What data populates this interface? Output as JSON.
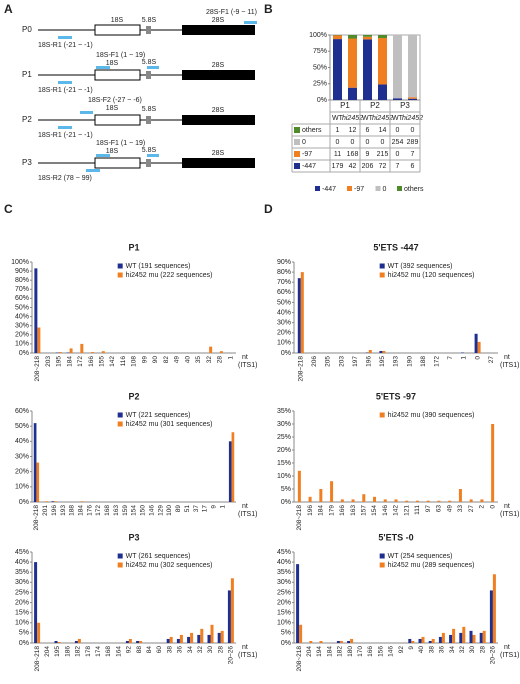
{
  "panels": [
    "A",
    "B",
    "C",
    "D"
  ],
  "diagram": {
    "rows": [
      {
        "label": "P0",
        "segments": [
          "18S",
          "5.8S",
          "28S"
        ],
        "primers": [
          "28S-F1 (-9 ~ 11)",
          "18S-R1 (-21 ~ -1)"
        ]
      },
      {
        "label": "P1",
        "segments": [
          "18S",
          "5.8S",
          "28S"
        ],
        "primers": [
          "18S-F1 (1 ~ 19)",
          "18S-R1 (-21 ~ -1)"
        ]
      },
      {
        "label": "P2",
        "segments": [
          "18S",
          "5.8S",
          "28S"
        ],
        "primers": [
          "18S-F2 (-27 ~ -6)",
          "18S-R1 (-21 ~ -1)"
        ]
      },
      {
        "label": "P3",
        "segments": [
          "18S",
          "5.8S",
          "28S"
        ],
        "primers": [
          "18S-F1 (1 ~ 19)",
          "18S-R2 (78 ~ 99)"
        ]
      }
    ]
  },
  "chart_data": [
    {
      "type": "stacked_percent",
      "groups": [
        "P1",
        "P2",
        "P3"
      ],
      "categories": [
        "WT",
        "hi2452",
        "WT",
        "hi2452",
        "WT",
        "hi2452"
      ],
      "ylim": [
        0,
        100
      ],
      "yticks": [
        {
          "value": 0,
          "label": "0%"
        },
        {
          "value": 25,
          "label": "25%"
        },
        {
          "value": 50,
          "label": "50%"
        },
        {
          "value": 75,
          "label": "75%"
        },
        {
          "value": 100,
          "label": "100%"
        }
      ],
      "series": [
        {
          "name": "-447",
          "color": "#1f2f8f",
          "values": [
            179,
            42,
            206,
            72,
            7,
            6
          ]
        },
        {
          "name": "-97",
          "color": "#f07f22",
          "values": [
            11,
            168,
            9,
            215,
            0,
            7
          ]
        },
        {
          "name": "0",
          "color": "#bfbfbf",
          "values": [
            0,
            0,
            0,
            0,
            254,
            289
          ]
        },
        {
          "name": "others",
          "color": "#4f8a2b",
          "values": [
            1,
            12,
            6,
            14,
            0,
            0
          ]
        }
      ]
    },
    {
      "type": "bar",
      "title": "P1",
      "xlabel": "nt",
      "xlabel2": "(ITS1)",
      "categories": [
        "208~218",
        "203",
        "195",
        "184",
        "172",
        "166",
        "155",
        "142",
        "116",
        "108",
        "99",
        "90",
        "82",
        "49",
        "40",
        "35",
        "32",
        "28",
        "1"
      ],
      "ylim": [
        0,
        100
      ],
      "yticks": [
        {
          "value": 0,
          "label": "0%"
        },
        {
          "value": 10,
          "label": "10%"
        },
        {
          "value": 20,
          "label": "20%"
        },
        {
          "value": 30,
          "label": "30%"
        },
        {
          "value": 40,
          "label": "40%"
        },
        {
          "value": 50,
          "label": "50%"
        },
        {
          "value": 60,
          "label": "60%"
        },
        {
          "value": 70,
          "label": "70%"
        },
        {
          "value": 80,
          "label": "80%"
        },
        {
          "value": 90,
          "label": "90%"
        },
        {
          "value": 100,
          "label": "100%"
        }
      ],
      "series": [
        {
          "name": "WT (191 sequences)",
          "color": "#1f2f8f",
          "values": [
            93,
            0,
            0.5,
            0.5,
            0,
            0,
            0,
            0,
            0,
            0,
            0,
            0,
            0,
            0,
            0,
            0,
            0,
            0,
            0
          ]
        },
        {
          "name": "hi2452 mu (222 sequences)",
          "color": "#f07f22",
          "values": [
            28,
            0,
            1,
            5,
            10,
            1,
            2,
            0,
            0,
            0,
            0,
            0,
            0,
            0,
            0,
            0,
            7,
            2,
            0
          ]
        }
      ]
    },
    {
      "type": "bar",
      "title": "P2",
      "xlabel": "nt",
      "xlabel2": "(ITS1)",
      "categories": [
        "208~218",
        "201",
        "196",
        "193",
        "188",
        "184",
        "176",
        "172",
        "168",
        "163",
        "159",
        "154",
        "150",
        "146",
        "129",
        "100",
        "89",
        "51",
        "37",
        "17",
        "9",
        "1",
        null
      ],
      "ylim": [
        0,
        60
      ],
      "yticks": [
        {
          "value": 0,
          "label": "0%"
        },
        {
          "value": 10,
          "label": "10%"
        },
        {
          "value": 20,
          "label": "20%"
        },
        {
          "value": 30,
          "label": "30%"
        },
        {
          "value": 40,
          "label": "40%"
        },
        {
          "value": 50,
          "label": "50%"
        },
        {
          "value": 60,
          "label": "60%"
        }
      ],
      "series": [
        {
          "name": "WT (221 sequences)",
          "color": "#1f2f8f",
          "values": [
            52,
            0,
            0.5,
            0,
            0,
            0,
            0,
            0,
            0,
            0,
            0,
            0,
            0,
            0,
            0,
            0,
            0,
            0,
            0,
            0,
            0,
            0,
            40
          ]
        },
        {
          "name": "hi2452 mu (301 sequences)",
          "color": "#f07f22",
          "values": [
            26,
            0.5,
            0.5,
            0,
            0,
            0.5,
            0,
            0,
            0,
            0,
            0,
            0,
            0,
            0,
            0,
            0,
            0,
            0,
            0,
            0,
            0,
            0,
            46
          ]
        }
      ]
    },
    {
      "type": "bar",
      "title": "P3",
      "xlabel": "nt",
      "xlabel2": "(ITS1)",
      "categories": [
        "208~218",
        "204",
        "195",
        "186",
        "182",
        "178",
        "174",
        "168",
        "164",
        "92",
        "88",
        "84",
        "60",
        "38",
        "36",
        "34",
        "32",
        "30",
        "28",
        "20~26"
      ],
      "ylim": [
        0,
        45
      ],
      "yticks": [
        {
          "value": 0,
          "label": "0%"
        },
        {
          "value": 5,
          "label": "5%"
        },
        {
          "value": 10,
          "label": "10%"
        },
        {
          "value": 15,
          "label": "15%"
        },
        {
          "value": 20,
          "label": "20%"
        },
        {
          "value": 25,
          "label": "25%"
        },
        {
          "value": 30,
          "label": "30%"
        },
        {
          "value": 35,
          "label": "35%"
        },
        {
          "value": 40,
          "label": "40%"
        },
        {
          "value": 45,
          "label": "45%"
        }
      ],
      "series": [
        {
          "name": "WT (261 sequences)",
          "color": "#1f2f8f",
          "values": [
            40,
            0,
            1,
            0,
            1,
            0,
            0,
            0,
            0,
            1,
            1,
            0,
            0,
            2,
            2,
            3,
            4,
            4,
            5,
            26
          ]
        },
        {
          "name": "hi2452 mu (302 sequences)",
          "color": "#f07f22",
          "values": [
            10,
            0,
            0.5,
            0,
            2,
            0,
            0,
            0,
            0,
            2,
            1,
            0,
            0,
            3,
            4,
            5,
            7,
            9,
            6,
            32
          ]
        }
      ]
    },
    {
      "type": "bar",
      "title": "5'ETS -447",
      "xlabel": "nt",
      "xlabel2": "(ITS1)",
      "categories": [
        "208~218",
        "206",
        "205",
        "203",
        "197",
        "196",
        "195",
        "193",
        "190",
        "188",
        "172",
        "7",
        "1",
        "0",
        "27"
      ],
      "ylim": [
        0,
        90
      ],
      "yticks": [
        {
          "value": 0,
          "label": "0%"
        },
        {
          "value": 10,
          "label": "10%"
        },
        {
          "value": 20,
          "label": "20%"
        },
        {
          "value": 30,
          "label": "30%"
        },
        {
          "value": 40,
          "label": "40%"
        },
        {
          "value": 50,
          "label": "50%"
        },
        {
          "value": 60,
          "label": "60%"
        },
        {
          "value": 70,
          "label": "70%"
        },
        {
          "value": 80,
          "label": "80%"
        },
        {
          "value": 90,
          "label": "90%"
        }
      ],
      "series": [
        {
          "name": "WT (392 sequences)",
          "color": "#1f2f8f",
          "values": [
            74,
            0,
            0,
            0,
            0,
            0.5,
            2,
            0,
            0,
            0,
            0,
            0,
            0.5,
            19,
            0
          ]
        },
        {
          "name": "hi2452 mu (120 sequences)",
          "color": "#f07f22",
          "values": [
            80,
            0,
            0,
            0,
            0,
            3,
            2,
            0,
            0,
            0,
            0,
            0,
            0,
            11,
            0
          ]
        }
      ]
    },
    {
      "type": "bar",
      "title": "5'ETS -97",
      "xlabel": "nt",
      "xlabel2": "(ITS1)",
      "categories": [
        "208~218",
        "196",
        "184",
        "179",
        "166",
        "163",
        "157",
        "154",
        "146",
        "142",
        "121",
        "111",
        "97",
        "63",
        "49",
        "33",
        "27",
        "2",
        "0"
      ],
      "ylim": [
        0,
        35
      ],
      "yticks": [
        {
          "value": 0,
          "label": "0%"
        },
        {
          "value": 5,
          "label": "5%"
        },
        {
          "value": 10,
          "label": "10%"
        },
        {
          "value": 15,
          "label": "15%"
        },
        {
          "value": 20,
          "label": "20%"
        },
        {
          "value": 25,
          "label": "25%"
        },
        {
          "value": 30,
          "label": "30%"
        },
        {
          "value": 35,
          "label": "35%"
        }
      ],
      "series": [
        {
          "name": "hi2452 mu (390 sequences)",
          "color": "#f07f22",
          "values": [
            12,
            2,
            5,
            8,
            1,
            1,
            3,
            2,
            1,
            1,
            0.5,
            0.5,
            0.5,
            0.5,
            0.5,
            5,
            1,
            1,
            30
          ]
        }
      ]
    },
    {
      "type": "bar",
      "title": "5'ETS -0",
      "xlabel": "nt",
      "xlabel2": "(ITS1)",
      "categories": [
        "208~218",
        "204",
        "194",
        "184",
        "182",
        "180",
        "170",
        "166",
        "156",
        "146",
        "92",
        "9",
        "40",
        "38",
        "36",
        "34",
        "32",
        "30",
        "28",
        "20~26"
      ],
      "ylim": [
        0,
        45
      ],
      "yticks": [
        {
          "value": 0,
          "label": "0%"
        },
        {
          "value": 5,
          "label": "5%"
        },
        {
          "value": 10,
          "label": "10%"
        },
        {
          "value": 15,
          "label": "15%"
        },
        {
          "value": 20,
          "label": "20%"
        },
        {
          "value": 25,
          "label": "25%"
        },
        {
          "value": 30,
          "label": "30%"
        },
        {
          "value": 35,
          "label": "35%"
        },
        {
          "value": 40,
          "label": "40%"
        },
        {
          "value": 45,
          "label": "45%"
        }
      ],
      "series": [
        {
          "name": "WT (254 sequences)",
          "color": "#1f2f8f",
          "values": [
            39,
            0,
            0,
            0,
            1,
            1,
            0,
            0,
            0,
            0,
            0,
            2,
            2,
            1,
            3,
            4,
            5,
            6,
            5,
            26
          ]
        },
        {
          "name": "hi2452 mu (289 sequences)",
          "color": "#f07f22",
          "values": [
            9,
            1,
            1,
            0,
            1,
            2,
            0,
            0,
            0,
            0,
            0,
            1,
            3,
            2,
            5,
            7,
            8,
            4,
            6,
            34
          ]
        }
      ]
    }
  ]
}
